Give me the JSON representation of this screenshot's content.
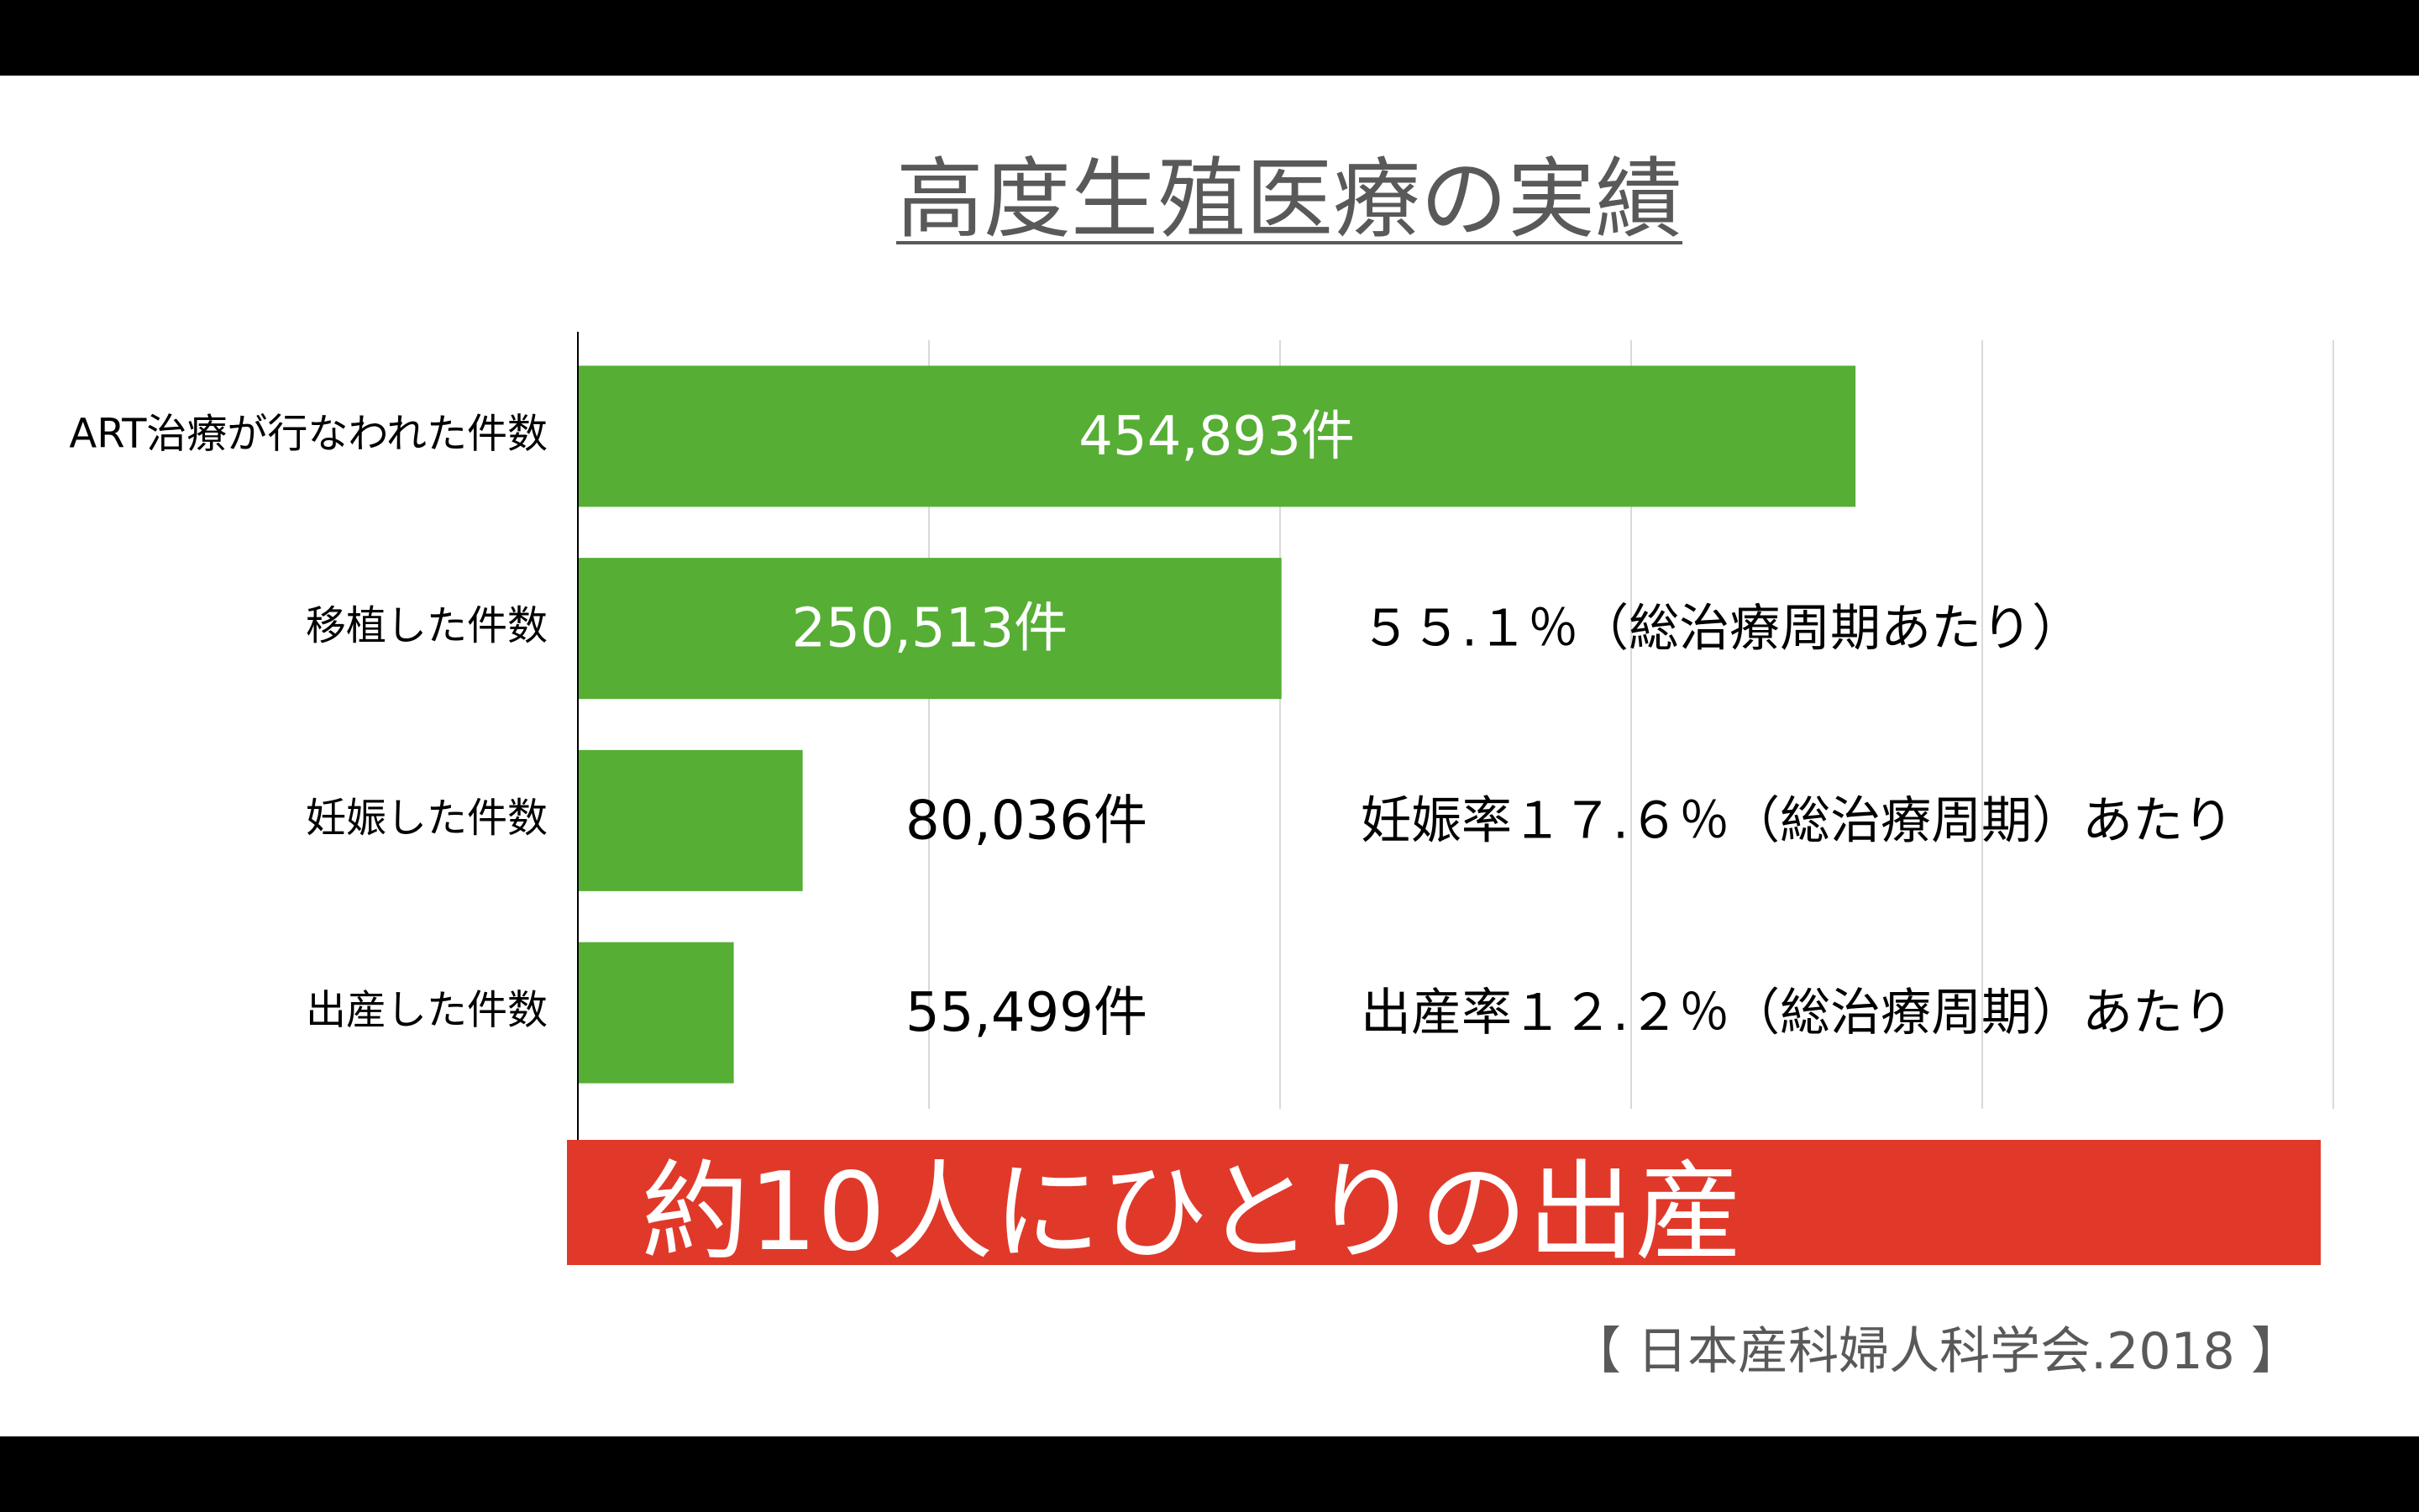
{
  "title": "高度生殖医療の実績",
  "chart_data": {
    "type": "bar",
    "orientation": "horizontal",
    "categories": [
      "ART治療が行なわれた件数",
      "移植した件数",
      "妊娠した件数",
      "出産した件数"
    ],
    "values": [
      454893,
      250513,
      80036,
      55499
    ],
    "data_labels": [
      "454,893件",
      "250,513件",
      "80,036件",
      "55,499件"
    ],
    "annotations": [
      "",
      "５５.１％（総治療周期あたり）",
      "妊娠率１７.６％（総治療周期）あたり",
      "出産率１２.２％（総治療周期）あたり"
    ],
    "xlim": [
      0,
      625000
    ],
    "x_gridlines": [
      0,
      125000,
      250000,
      375000,
      500000,
      625000
    ],
    "grid": true,
    "colors": {
      "bar": "#56AE35",
      "grid": "#D9D9D9",
      "axis": "#000000"
    }
  },
  "banner": {
    "text": "約10人にひとりの出産",
    "color": "#E0392A"
  },
  "source": "【 日本産科婦人科学会.2018 】"
}
